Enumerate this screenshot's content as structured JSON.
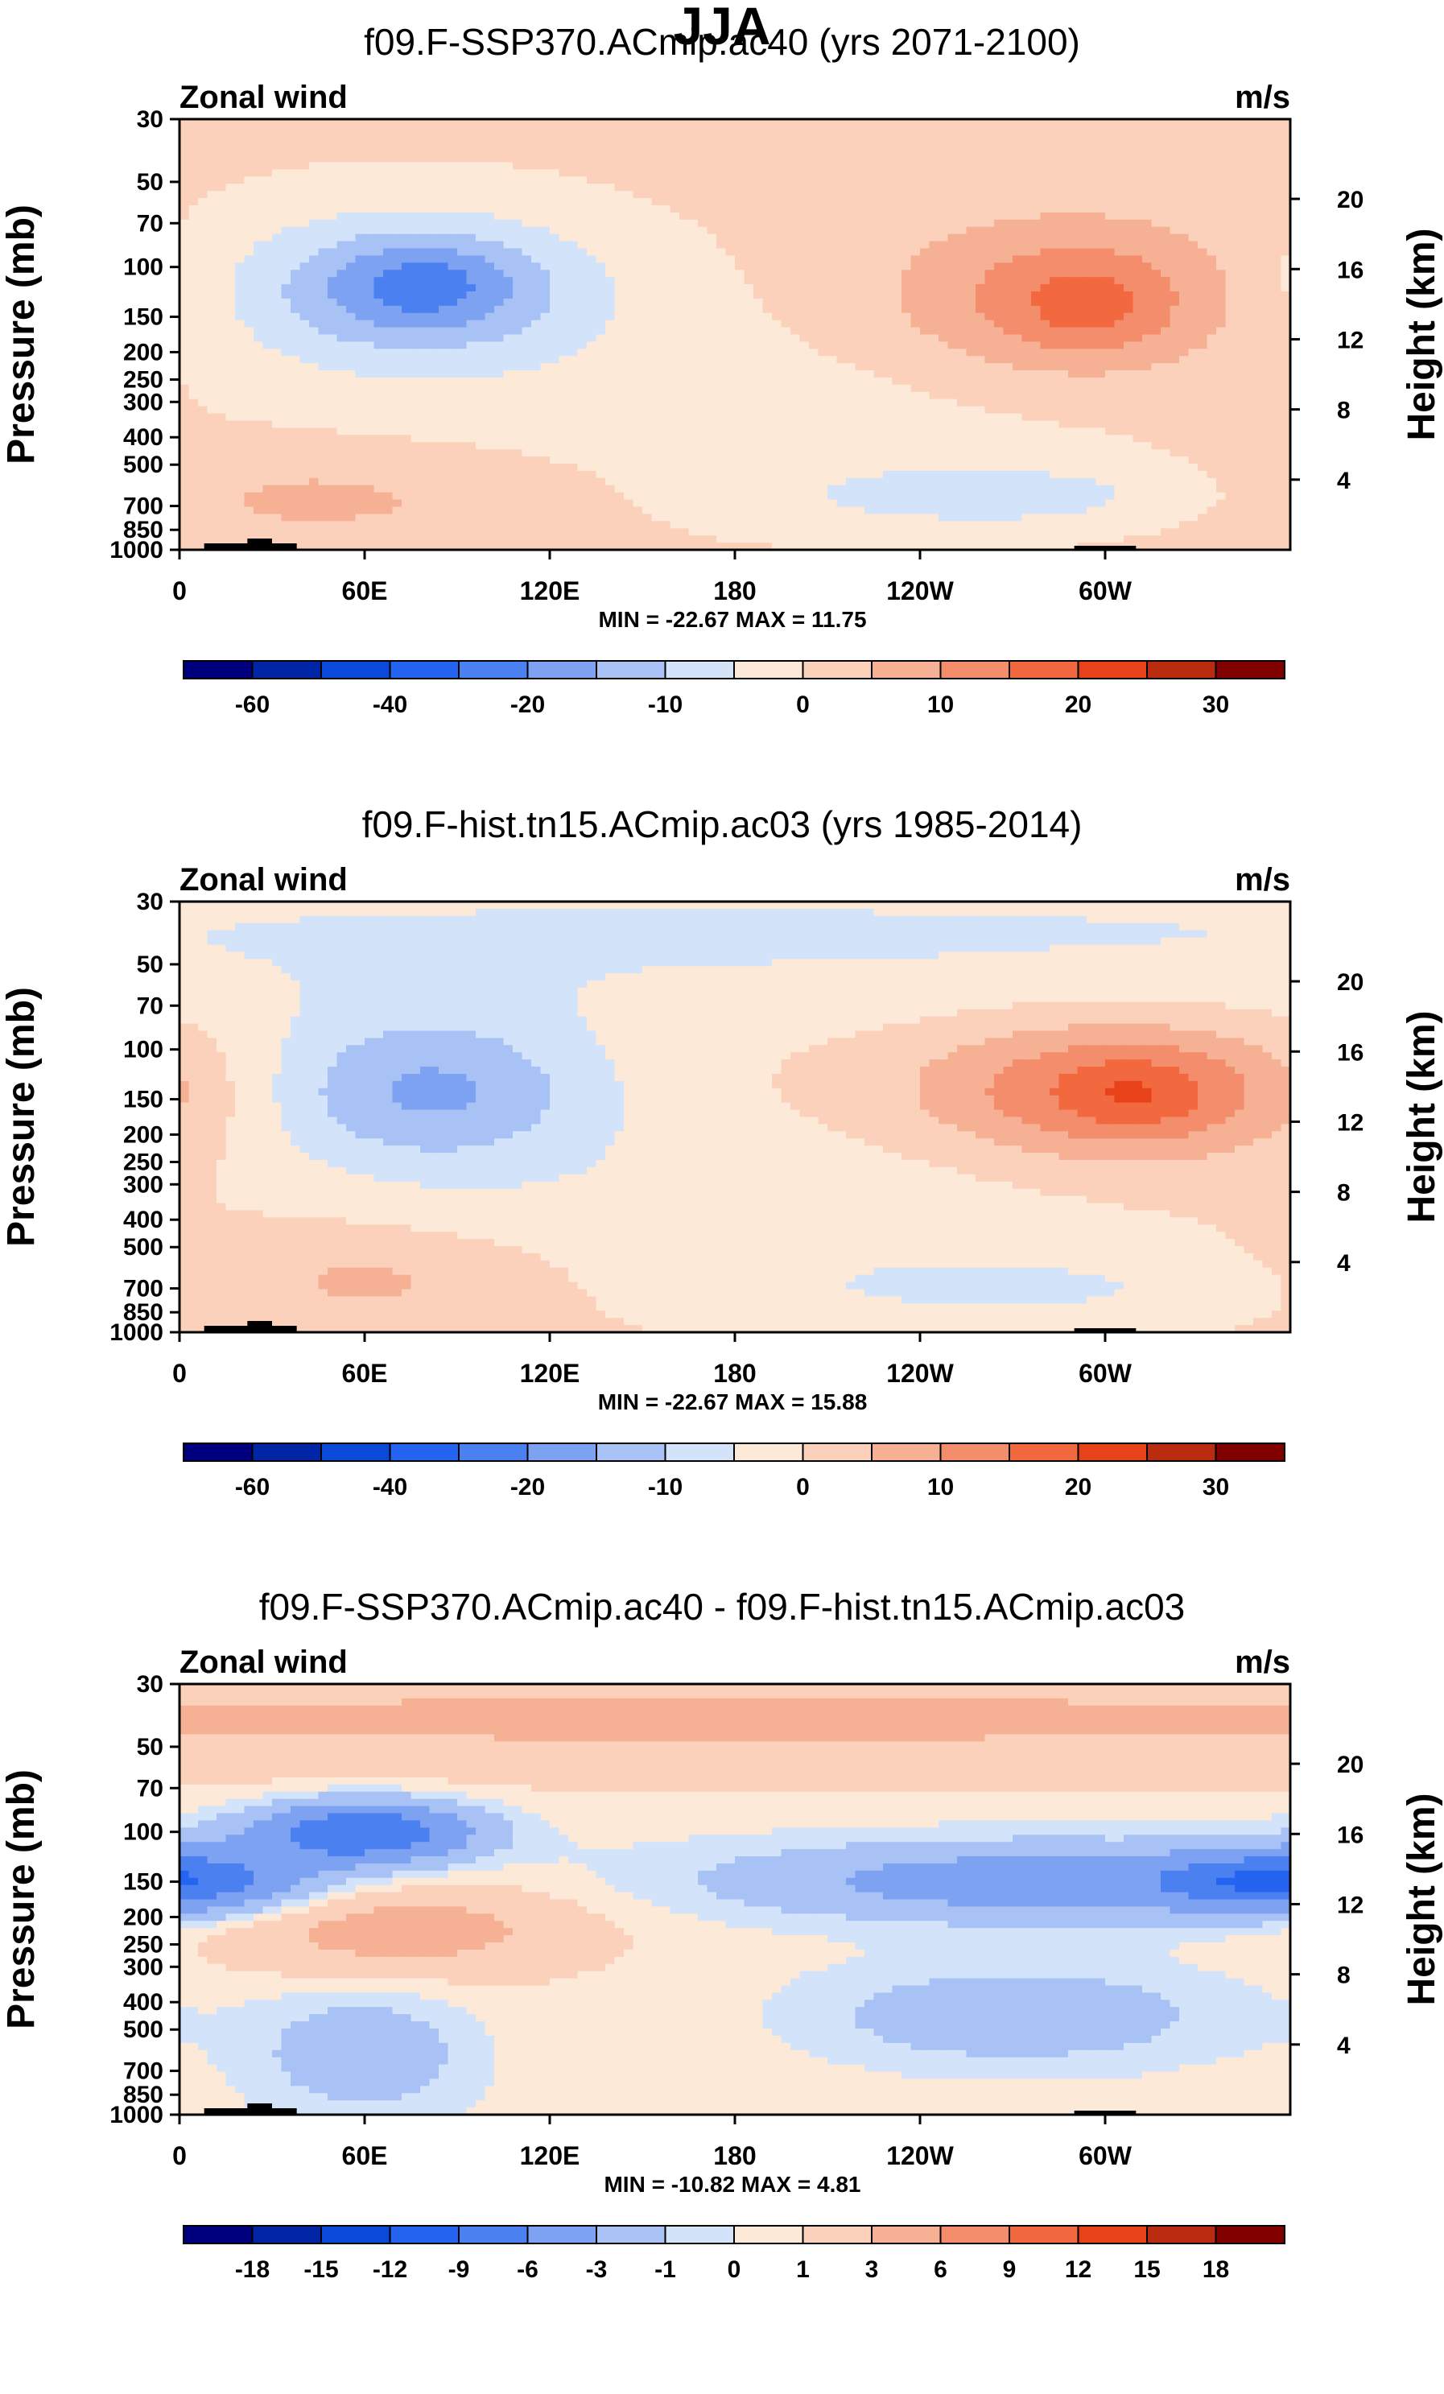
{
  "title": "JJA",
  "chart_data": [
    {
      "type": "contour",
      "title": "f09.F-SSP370.ACmip.ac40 (yrs 2071-2100)",
      "left_label": "Zonal wind",
      "right_label": "m/s",
      "ylabel": "Pressure (mb)",
      "right_axis_label": "Height (km)",
      "x_ticks": [
        {
          "lon": 0,
          "label": "0"
        },
        {
          "lon": 60,
          "label": "60E"
        },
        {
          "lon": 120,
          "label": "120E"
        },
        {
          "lon": 180,
          "label": "180"
        },
        {
          "lon": 240,
          "label": "120W"
        },
        {
          "lon": 300,
          "label": "60W"
        }
      ],
      "xlim": [
        0,
        360
      ],
      "y_ticks": [
        30,
        50,
        70,
        100,
        150,
        200,
        250,
        300,
        400,
        500,
        700,
        850,
        1000
      ],
      "ylim": [
        1000,
        30
      ],
      "height_ticks": [
        4,
        8,
        12,
        16,
        20
      ],
      "stats": "MIN = -22.67  MAX =  11.75",
      "colorbar": {
        "levels": [
          -70,
          -60,
          -50,
          -40,
          -30,
          -20,
          -15,
          -10,
          -5,
          0,
          5,
          10,
          15,
          20,
          25,
          30
        ],
        "labels": [
          "-60",
          "-40",
          "-20",
          "-10",
          "0",
          "10",
          "20",
          "30"
        ],
        "label_boundary_index": [
          1,
          3,
          5,
          7,
          9,
          11,
          13,
          15
        ],
        "colors": [
          "#00007f",
          "#0026a6",
          "#0a49d9",
          "#2464f0",
          "#4a80f0",
          "#7ea2f2",
          "#a8c2f5",
          "#d3e3fa",
          "#fde9d8",
          "#fbd1bb",
          "#f6b094",
          "#f38d6c",
          "#f2683f",
          "#e7421a",
          "#b92c10",
          "#800000"
        ]
      },
      "blobs": [
        {
          "lon": 75,
          "p": 120,
          "sx": 45,
          "sy": 0.45,
          "amp": -16
        },
        {
          "lon": 80,
          "p": 115,
          "sx": 20,
          "sy": 0.25,
          "amp": -8
        },
        {
          "lon": 290,
          "p": 130,
          "sx": 40,
          "sy": 0.45,
          "amp": 13
        },
        {
          "lon": 295,
          "p": 140,
          "sx": 15,
          "sy": 0.25,
          "amp": 5
        },
        {
          "lon": 40,
          "p": 650,
          "sx": 60,
          "sy": 0.3,
          "amp": 6
        },
        {
          "lon": 270,
          "p": 650,
          "sx": 55,
          "sy": 0.2,
          "amp": -8
        },
        {
          "lon": 180,
          "p": 350,
          "sx": 120,
          "sy": 0.6,
          "amp": -3
        }
      ],
      "base": 1
    },
    {
      "type": "contour",
      "title": "f09.F-hist.tn15.ACmip.ac03 (yrs 1985-2014)",
      "left_label": "Zonal wind",
      "right_label": "m/s",
      "ylabel": "Pressure (mb)",
      "right_axis_label": "Height (km)",
      "x_ticks": [
        {
          "lon": 0,
          "label": "0"
        },
        {
          "lon": 60,
          "label": "60E"
        },
        {
          "lon": 120,
          "label": "120E"
        },
        {
          "lon": 180,
          "label": "180"
        },
        {
          "lon": 240,
          "label": "120W"
        },
        {
          "lon": 300,
          "label": "60W"
        }
      ],
      "xlim": [
        0,
        360
      ],
      "y_ticks": [
        30,
        50,
        70,
        100,
        150,
        200,
        250,
        300,
        400,
        500,
        700,
        850,
        1000
      ],
      "ylim": [
        1000,
        30
      ],
      "height_ticks": [
        4,
        8,
        12,
        16,
        20
      ],
      "stats": "MIN = -22.67  MAX =  15.88",
      "colorbar": {
        "levels": [
          -70,
          -60,
          -50,
          -40,
          -30,
          -20,
          -15,
          -10,
          -5,
          0,
          5,
          10,
          15,
          20,
          25,
          30
        ],
        "labels": [
          "-60",
          "-40",
          "-20",
          "-10",
          "0",
          "10",
          "20",
          "30"
        ],
        "label_boundary_index": [
          1,
          3,
          5,
          7,
          9,
          11,
          13,
          15
        ],
        "colors": [
          "#00007f",
          "#0026a6",
          "#0a49d9",
          "#2464f0",
          "#4a80f0",
          "#7ea2f2",
          "#a8c2f5",
          "#d3e3fa",
          "#fde9d8",
          "#fbd1bb",
          "#f6b094",
          "#f38d6c",
          "#f2683f",
          "#e7421a",
          "#b92c10",
          "#800000"
        ]
      },
      "blobs": [
        {
          "lon": 80,
          "p": 140,
          "sx": 40,
          "sy": 0.45,
          "amp": -16
        },
        {
          "lon": 305,
          "p": 140,
          "sx": 45,
          "sy": 0.4,
          "amp": 16
        },
        {
          "lon": 310,
          "p": 145,
          "sx": 15,
          "sy": 0.2,
          "amp": 5
        },
        {
          "lon": 60,
          "p": 650,
          "sx": 40,
          "sy": 0.3,
          "amp": 6
        },
        {
          "lon": 270,
          "p": 700,
          "sx": 60,
          "sy": 0.2,
          "amp": -6
        },
        {
          "lon": 180,
          "p": 40,
          "sx": 400,
          "sy": 0.5,
          "amp": -6
        },
        {
          "lon": 180,
          "p": 350,
          "sx": 90,
          "sy": 0.5,
          "amp": -4
        }
      ],
      "base": 0.5
    },
    {
      "type": "contour",
      "title": "f09.F-SSP370.ACmip.ac40 - f09.F-hist.tn15.ACmip.ac03",
      "left_label": "Zonal wind",
      "right_label": "m/s",
      "ylabel": "Pressure (mb)",
      "right_axis_label": "Height (km)",
      "x_ticks": [
        {
          "lon": 0,
          "label": "0"
        },
        {
          "lon": 60,
          "label": "60E"
        },
        {
          "lon": 120,
          "label": "120E"
        },
        {
          "lon": 180,
          "label": "180"
        },
        {
          "lon": 240,
          "label": "120W"
        },
        {
          "lon": 300,
          "label": "60W"
        }
      ],
      "xlim": [
        0,
        360
      ],
      "y_ticks": [
        30,
        50,
        70,
        100,
        150,
        200,
        250,
        300,
        400,
        500,
        700,
        850,
        1000
      ],
      "ylim": [
        1000,
        30
      ],
      "height_ticks": [
        4,
        8,
        12,
        16,
        20
      ],
      "stats": "MIN = -10.82  MAX =   4.81",
      "colorbar": {
        "levels": [
          -21,
          -18,
          -15,
          -12,
          -9,
          -6,
          -3,
          -1,
          0,
          1,
          3,
          6,
          9,
          12,
          15,
          18
        ],
        "labels": [
          "-18",
          "-15",
          "-12",
          "-9",
          "-6",
          "-3",
          "-1",
          "0",
          "1",
          "3",
          "6",
          "9",
          "12",
          "15",
          "18"
        ],
        "label_boundary_index": [
          1,
          2,
          3,
          4,
          5,
          6,
          7,
          8,
          9,
          10,
          11,
          12,
          13,
          14,
          15
        ],
        "colors": [
          "#00007f",
          "#0026a6",
          "#0a49d9",
          "#2464f0",
          "#4a80f0",
          "#7ea2f2",
          "#a8c2f5",
          "#d3e3fa",
          "#fde9d8",
          "#fbd1bb",
          "#f6b094",
          "#f38d6c",
          "#f2683f",
          "#e7421a",
          "#b92c10",
          "#800000"
        ]
      },
      "blobs": [
        {
          "lon": 180,
          "p": 40,
          "sx": 500,
          "sy": 0.35,
          "amp": 3
        },
        {
          "lon": 60,
          "p": 100,
          "sx": 25,
          "sy": 0.18,
          "amp": -9
        },
        {
          "lon": 10,
          "p": 150,
          "sx": 25,
          "sy": 0.2,
          "amp": -5
        },
        {
          "lon": 280,
          "p": 150,
          "sx": 70,
          "sy": 0.22,
          "amp": -5
        },
        {
          "lon": 345,
          "p": 150,
          "sx": 20,
          "sy": 0.15,
          "amp": -4
        },
        {
          "lon": 70,
          "p": 220,
          "sx": 40,
          "sy": 0.25,
          "amp": 4
        },
        {
          "lon": 60,
          "p": 600,
          "sx": 25,
          "sy": 0.35,
          "amp": -3
        },
        {
          "lon": 270,
          "p": 450,
          "sx": 50,
          "sy": 0.3,
          "amp": -3
        },
        {
          "lon": 180,
          "p": 500,
          "sx": 200,
          "sy": 0.5,
          "amp": 0.5
        }
      ],
      "base": 0.3
    }
  ]
}
